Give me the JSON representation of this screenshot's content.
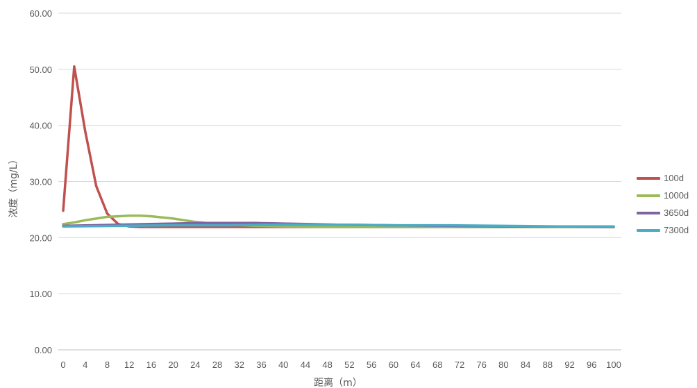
{
  "chart_data": {
    "type": "line",
    "title": "",
    "xlabel": "距离（m）",
    "ylabel": "浓度（mg/L）",
    "ylim": [
      0,
      60
    ],
    "y_ticks": [
      "0.00",
      "10.00",
      "20.00",
      "30.00",
      "40.00",
      "50.00",
      "60.00"
    ],
    "x_ticks": [
      "0",
      "4",
      "8",
      "12",
      "16",
      "20",
      "24",
      "28",
      "32",
      "36",
      "40",
      "44",
      "48",
      "52",
      "56",
      "60",
      "64",
      "68",
      "72",
      "76",
      "80",
      "84",
      "88",
      "92",
      "96",
      "100"
    ],
    "grid": "horizontal",
    "legend_position": "right",
    "series": [
      {
        "name": "100d",
        "color": "#C0504D",
        "x": [
          0,
          2,
          4,
          6,
          8,
          10,
          12,
          14,
          16,
          18,
          20,
          30,
          40,
          50,
          60,
          70,
          80,
          90,
          100
        ],
        "y": [
          24.8,
          50.5,
          39.0,
          29.2,
          24.3,
          22.4,
          22.0,
          21.9,
          21.9,
          21.9,
          21.9,
          21.9,
          21.9,
          21.9,
          21.9,
          21.9,
          21.9,
          21.9,
          21.9
        ]
      },
      {
        "name": "1000d",
        "color": "#9BBB59",
        "x": [
          0,
          2,
          4,
          6,
          8,
          10,
          12,
          14,
          16,
          18,
          20,
          22,
          24,
          26,
          28,
          30,
          35,
          40,
          50,
          60,
          70,
          80,
          90,
          100
        ],
        "y": [
          22.4,
          22.7,
          23.1,
          23.4,
          23.7,
          23.8,
          23.9,
          23.9,
          23.8,
          23.6,
          23.4,
          23.1,
          22.8,
          22.6,
          22.4,
          22.3,
          22.1,
          22.0,
          21.9,
          21.9,
          21.9,
          21.9,
          21.9,
          21.9
        ]
      },
      {
        "name": "3650d",
        "color": "#8064A2",
        "x": [
          0,
          5,
          10,
          15,
          20,
          25,
          30,
          35,
          40,
          45,
          50,
          60,
          70,
          80,
          90,
          100
        ],
        "y": [
          22.1,
          22.2,
          22.3,
          22.4,
          22.5,
          22.6,
          22.6,
          22.6,
          22.5,
          22.4,
          22.3,
          22.2,
          22.1,
          22.0,
          22.0,
          21.9
        ]
      },
      {
        "name": "7300d",
        "color": "#4BACC6",
        "x": [
          0,
          10,
          20,
          30,
          40,
          50,
          60,
          70,
          80,
          90,
          100
        ],
        "y": [
          22.0,
          22.1,
          22.2,
          22.2,
          22.3,
          22.3,
          22.2,
          22.2,
          22.1,
          22.0,
          22.0
        ]
      }
    ]
  }
}
